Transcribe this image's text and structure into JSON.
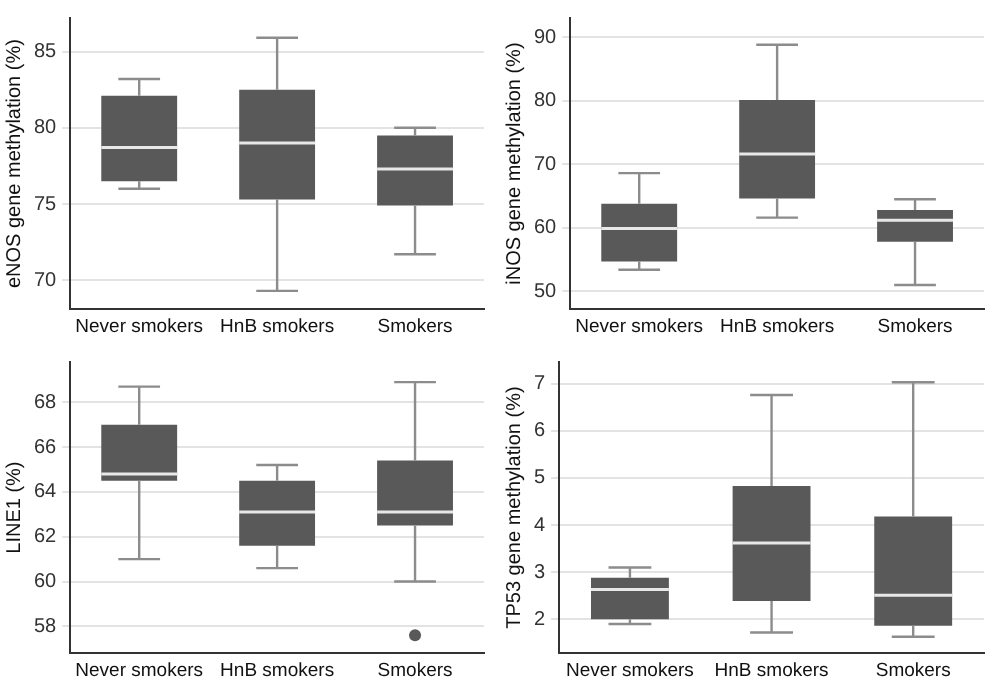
{
  "chart_data": [
    {
      "type": "box",
      "categories": [
        "Never smokers",
        "HnB smokers",
        "Smokers"
      ],
      "ylabel": "eNOS gene methylation (%)",
      "ylim": [
        68.1,
        87.2
      ],
      "yticks": [
        70,
        75,
        80,
        85
      ],
      "grid": "y",
      "color": "#595959",
      "boxes": [
        {
          "low": 76.0,
          "q1": 76.5,
          "median": 78.7,
          "q3": 82.1,
          "high": 83.2
        },
        {
          "low": 69.3,
          "q1": 75.3,
          "median": 79.0,
          "q3": 82.5,
          "high": 85.9
        },
        {
          "low": 71.7,
          "q1": 74.9,
          "median": 77.3,
          "q3": 79.5,
          "high": 80.0
        }
      ]
    },
    {
      "type": "box",
      "categories": [
        "Never smokers",
        "HnB smokers",
        "Smokers"
      ],
      "ylabel": "iNOS gene methylation (%)",
      "ylim": [
        47.2,
        93
      ],
      "yticks": [
        50,
        60,
        70,
        80,
        90
      ],
      "grid": "y",
      "color": "#595959",
      "boxes": [
        {
          "low": 53.4,
          "q1": 54.7,
          "median": 59.9,
          "q3": 63.8,
          "high": 68.6
        },
        {
          "low": 61.6,
          "q1": 64.6,
          "median": 71.6,
          "q3": 80.1,
          "high": 88.8
        },
        {
          "low": 51.0,
          "q1": 57.8,
          "median": 61.2,
          "q3": 62.8,
          "high": 64.5
        }
      ]
    },
    {
      "type": "box",
      "categories": [
        "Never smokers",
        "HnB smokers",
        "Smokers"
      ],
      "ylabel": "LINE1 (%)",
      "ylim": [
        56.8,
        69.8
      ],
      "yticks": [
        58,
        60,
        62,
        64,
        66,
        68
      ],
      "grid": "y",
      "color": "#595959",
      "boxes": [
        {
          "low": 61.0,
          "q1": 64.5,
          "median": 64.8,
          "q3": 67.0,
          "high": 68.7
        },
        {
          "low": 60.6,
          "q1": 61.6,
          "median": 63.1,
          "q3": 64.5,
          "high": 65.2
        },
        {
          "low": 60.0,
          "q1": 62.5,
          "median": 63.1,
          "q3": 65.4,
          "high": 68.9,
          "outliers": [
            57.6
          ]
        }
      ]
    },
    {
      "type": "box",
      "categories": [
        "Never smokers",
        "HnB smokers",
        "Smokers"
      ],
      "ylabel": "TP53 gene methylation (%)",
      "ylim": [
        1.28,
        7.46
      ],
      "yticks": [
        2,
        3,
        4,
        5,
        6,
        7
      ],
      "grid": "y",
      "color": "#595959",
      "boxes": [
        {
          "low": 1.9,
          "q1": 2.0,
          "median": 2.63,
          "q3": 2.88,
          "high": 3.1
        },
        {
          "low": 1.72,
          "q1": 2.39,
          "median": 3.62,
          "q3": 4.83,
          "high": 6.76
        },
        {
          "low": 1.63,
          "q1": 1.86,
          "median": 2.51,
          "q3": 4.18,
          "high": 7.03
        }
      ]
    }
  ]
}
